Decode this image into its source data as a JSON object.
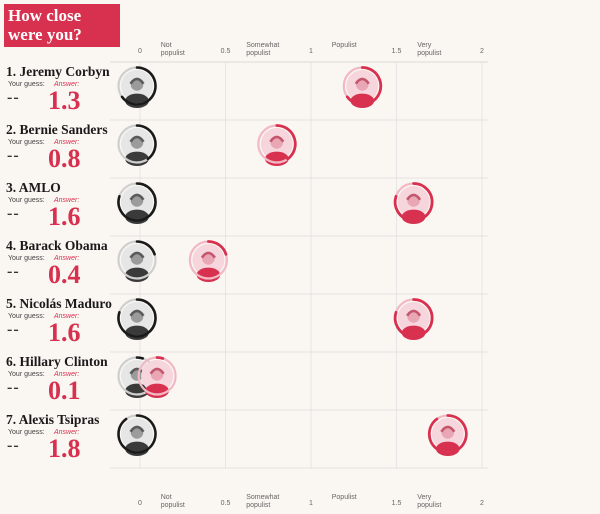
{
  "title": "How close were you?",
  "labels": {
    "your_guess": "Your guess:",
    "answer": "Answer:"
  },
  "chart_data": {
    "type": "scatter",
    "title": "How close were you?",
    "xlim": [
      0,
      2
    ],
    "ticks": [
      "0",
      "0.5",
      "1",
      "1.5",
      "2"
    ],
    "tick_values": [
      0,
      0.5,
      1,
      1.5,
      2
    ],
    "zones": [
      {
        "label": "Not populist",
        "lines": [
          "Not",
          "populist"
        ],
        "value": 0.25
      },
      {
        "label": "Somewhat populist",
        "lines": [
          "Somewhat",
          "populist"
        ],
        "value": 0.75
      },
      {
        "label": "Populist",
        "lines": [
          "Populist"
        ],
        "value": 1.25
      },
      {
        "label": "Very populist",
        "lines": [
          "Very",
          "populist"
        ],
        "value": 1.75
      }
    ],
    "people": [
      {
        "rank": "1.",
        "name": "Jeremy Corbyn",
        "guess": "--",
        "answer_text": "1.3",
        "answer": 1.3
      },
      {
        "rank": "2.",
        "name": "Bernie Sanders",
        "guess": "--",
        "answer_text": "0.8",
        "answer": 0.8
      },
      {
        "rank": "3.",
        "name": "AMLO",
        "guess": "--",
        "answer_text": "1.6",
        "answer": 1.6
      },
      {
        "rank": "4.",
        "name": "Barack Obama",
        "guess": "--",
        "answer_text": "0.4",
        "answer": 0.4
      },
      {
        "rank": "5.",
        "name": "Nicolás Maduro",
        "guess": "--",
        "answer_text": "1.6",
        "answer": 1.6
      },
      {
        "rank": "6.",
        "name": "Hillary Clinton",
        "guess": "--",
        "answer_text": "0.1",
        "answer": 0.1
      },
      {
        "rank": "7.",
        "name": "Alexis Tsipras",
        "guess": "--",
        "answer_text": "1.8",
        "answer": 1.8
      }
    ]
  },
  "colors": {
    "accent": "#d8314f",
    "ring_dark": "#1a1a1a",
    "grid": "#dddddd",
    "background": "#faf6f2"
  }
}
